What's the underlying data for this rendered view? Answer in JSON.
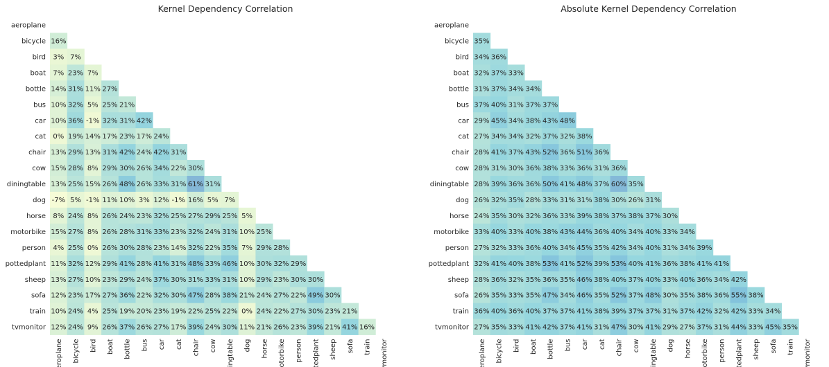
{
  "chart_data": [
    {
      "type": "heatmap",
      "title": "Kernel Dependency Correlation",
      "labels": [
        "aeroplane",
        "bicycle",
        "bird",
        "boat",
        "bottle",
        "bus",
        "car",
        "cat",
        "chair",
        "cow",
        "diningtable",
        "dog",
        "horse",
        "motorbike",
        "person",
        "pottedplant",
        "sheep",
        "sofa",
        "train",
        "tvmonitor"
      ],
      "value_format": "percent",
      "colormap": "YlGnBu",
      "vmin": -0.2,
      "vmax": 1.0,
      "masked": "upper-triangle-including-diagonal",
      "rows": [
        [],
        [
          16
        ],
        [
          3,
          7
        ],
        [
          7,
          23,
          7
        ],
        [
          14,
          31,
          11,
          27
        ],
        [
          10,
          32,
          5,
          25,
          21
        ],
        [
          10,
          36,
          -1,
          32,
          31,
          42
        ],
        [
          0,
          19,
          14,
          17,
          23,
          17,
          24
        ],
        [
          13,
          29,
          13,
          31,
          42,
          24,
          42,
          31
        ],
        [
          15,
          28,
          8,
          29,
          30,
          26,
          34,
          22,
          30
        ],
        [
          13,
          25,
          15,
          26,
          48,
          26,
          33,
          31,
          61,
          31
        ],
        [
          -7,
          5,
          -1,
          11,
          10,
          3,
          12,
          -1,
          16,
          5,
          7
        ],
        [
          8,
          24,
          8,
          26,
          24,
          23,
          32,
          25,
          27,
          29,
          25,
          5
        ],
        [
          15,
          27,
          8,
          26,
          28,
          31,
          33,
          23,
          32,
          24,
          31,
          10,
          25
        ],
        [
          4,
          25,
          0,
          26,
          30,
          28,
          23,
          14,
          32,
          22,
          35,
          7,
          29,
          28
        ],
        [
          11,
          32,
          12,
          29,
          41,
          28,
          41,
          31,
          48,
          33,
          46,
          10,
          30,
          32,
          29
        ],
        [
          13,
          27,
          10,
          23,
          29,
          24,
          37,
          30,
          31,
          33,
          31,
          10,
          29,
          23,
          30,
          30
        ],
        [
          12,
          23,
          17,
          27,
          36,
          22,
          32,
          30,
          47,
          28,
          38,
          21,
          24,
          27,
          22,
          49,
          30
        ],
        [
          10,
          24,
          4,
          25,
          19,
          20,
          23,
          19,
          22,
          25,
          22,
          0,
          24,
          22,
          27,
          30,
          23,
          21
        ],
        [
          12,
          24,
          9,
          26,
          37,
          26,
          27,
          17,
          39,
          24,
          30,
          11,
          21,
          26,
          23,
          39,
          21,
          41,
          16
        ]
      ]
    },
    {
      "type": "heatmap",
      "title": "Absolute Kernel Dependency Correlation",
      "labels": [
        "aeroplane",
        "bicycle",
        "bird",
        "boat",
        "bottle",
        "bus",
        "car",
        "cat",
        "chair",
        "cow",
        "diningtable",
        "dog",
        "horse",
        "motorbike",
        "person",
        "pottedplant",
        "sheep",
        "sofa",
        "train",
        "tvmonitor"
      ],
      "value_format": "percent",
      "colormap": "YlGnBu",
      "vmin": -0.2,
      "vmax": 1.0,
      "masked": "upper-triangle-including-diagonal",
      "rows": [
        [],
        [
          35
        ],
        [
          34,
          36
        ],
        [
          32,
          37,
          33
        ],
        [
          31,
          37,
          34,
          34
        ],
        [
          37,
          40,
          31,
          37,
          37
        ],
        [
          29,
          45,
          34,
          38,
          43,
          48
        ],
        [
          27,
          34,
          34,
          32,
          37,
          32,
          38
        ],
        [
          28,
          41,
          37,
          43,
          52,
          36,
          51,
          36
        ],
        [
          28,
          31,
          30,
          36,
          38,
          33,
          36,
          31,
          36
        ],
        [
          28,
          39,
          36,
          36,
          50,
          41,
          48,
          37,
          60,
          35
        ],
        [
          26,
          32,
          35,
          28,
          33,
          31,
          31,
          38,
          30,
          26,
          31
        ],
        [
          24,
          35,
          30,
          32,
          36,
          33,
          39,
          38,
          37,
          38,
          37,
          30
        ],
        [
          33,
          40,
          33,
          40,
          38,
          43,
          44,
          36,
          40,
          34,
          40,
          33,
          34
        ],
        [
          27,
          32,
          33,
          36,
          40,
          34,
          45,
          35,
          42,
          34,
          40,
          31,
          34,
          39
        ],
        [
          32,
          41,
          40,
          38,
          53,
          41,
          52,
          39,
          53,
          40,
          41,
          36,
          38,
          41,
          41
        ],
        [
          28,
          36,
          32,
          35,
          36,
          35,
          46,
          38,
          40,
          37,
          40,
          33,
          40,
          36,
          34,
          42
        ],
        [
          26,
          35,
          33,
          35,
          47,
          34,
          46,
          35,
          52,
          37,
          48,
          30,
          35,
          38,
          36,
          55,
          38
        ],
        [
          36,
          40,
          36,
          40,
          37,
          37,
          41,
          38,
          39,
          37,
          37,
          31,
          37,
          42,
          32,
          42,
          33,
          34
        ],
        [
          27,
          35,
          33,
          41,
          42,
          37,
          41,
          31,
          47,
          30,
          41,
          29,
          27,
          37,
          31,
          44,
          33,
          45,
          35
        ]
      ]
    }
  ]
}
